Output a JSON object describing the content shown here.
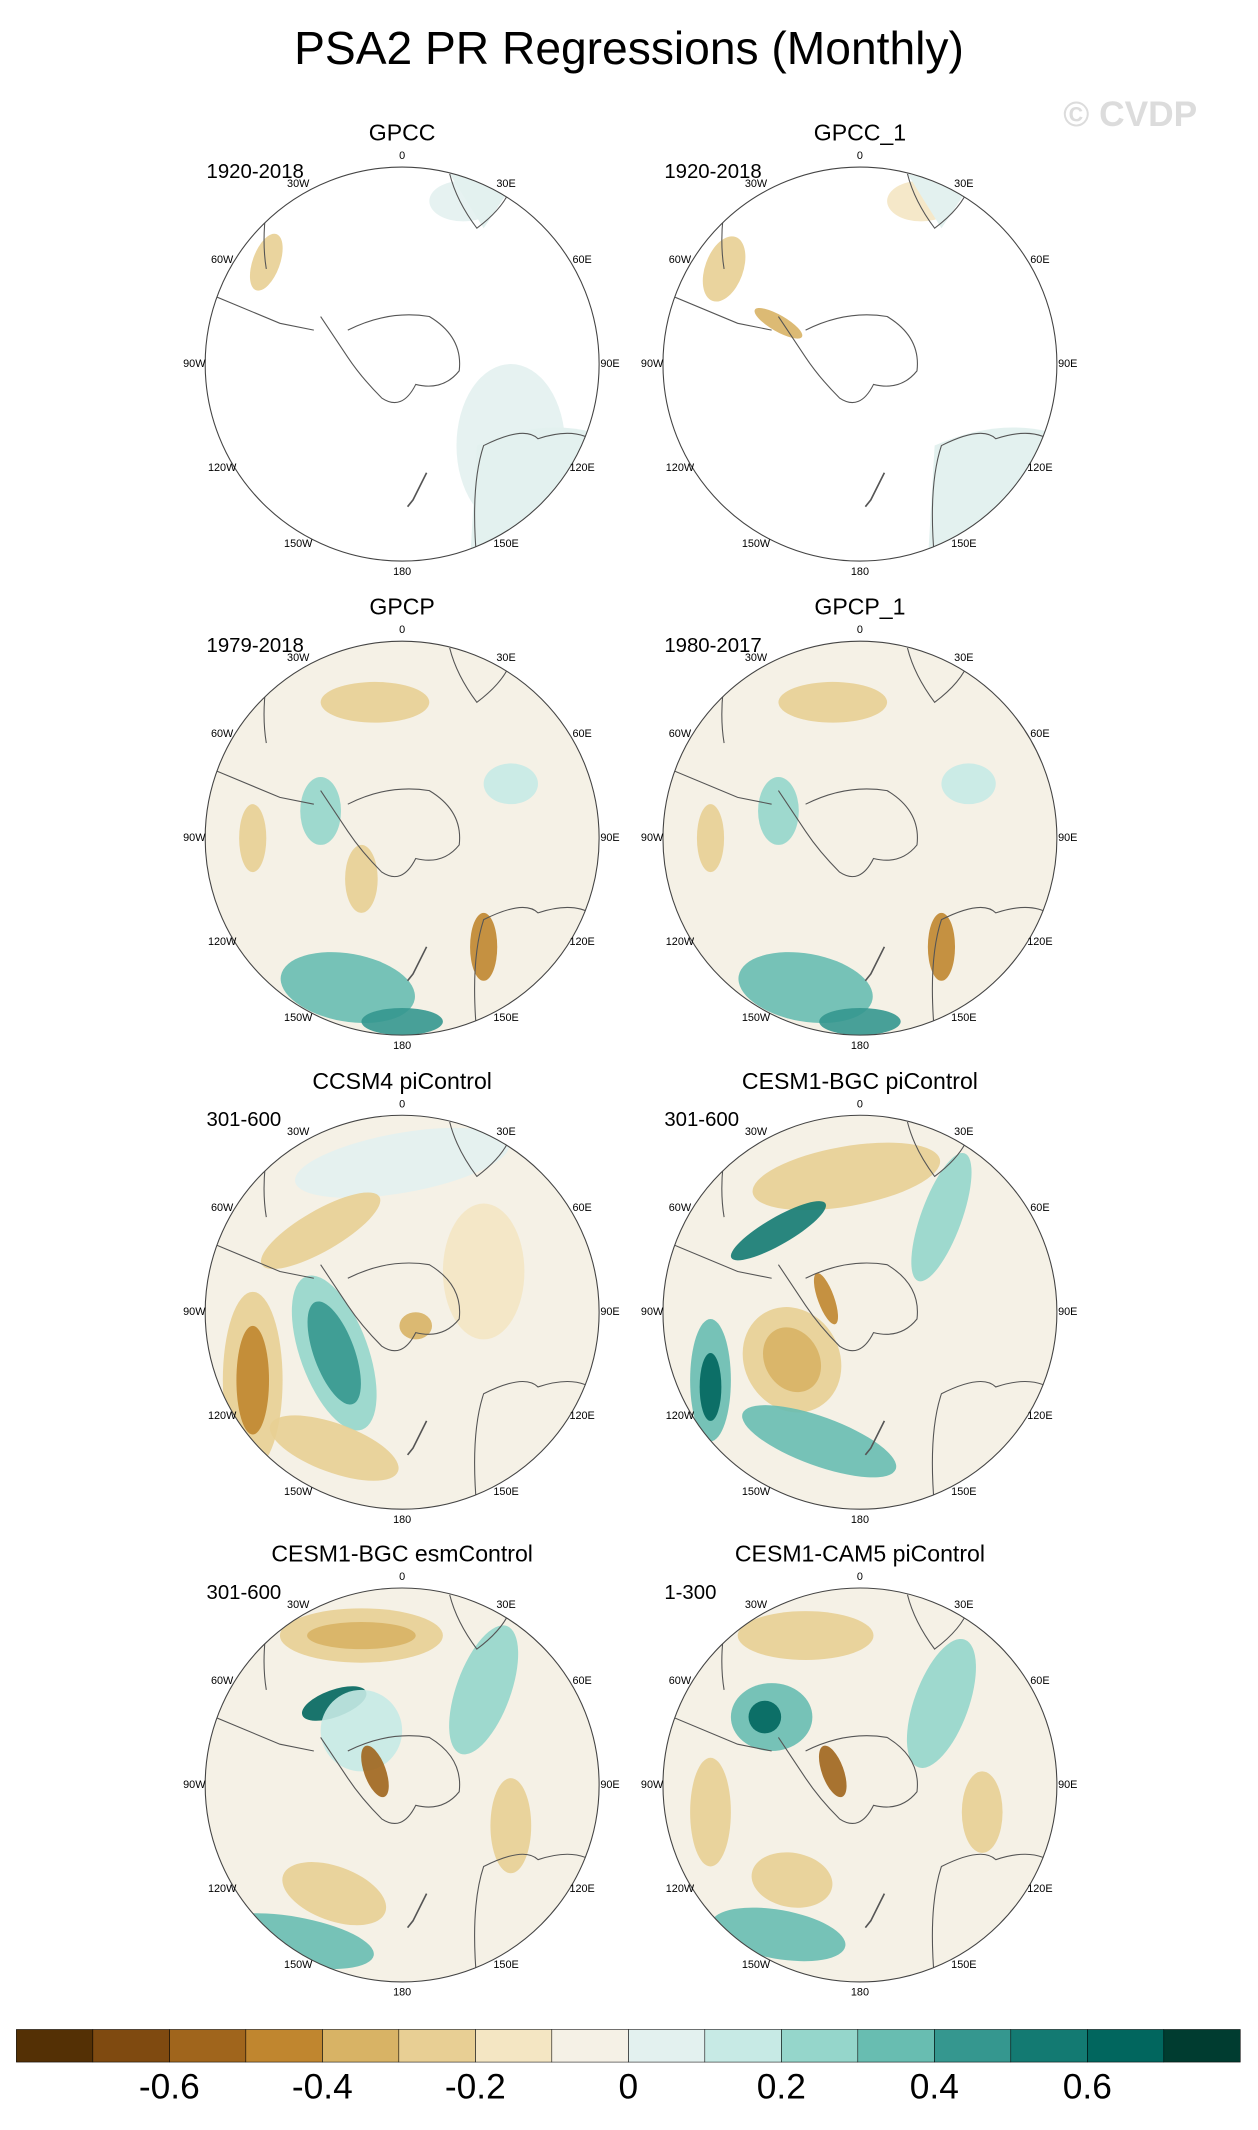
{
  "title": "PSA2 PR Regressions (Monthly)",
  "watermark": "© CVDP",
  "panels": [
    {
      "title": "GPCC",
      "period": "1920-2018"
    },
    {
      "title": "GPCC_1",
      "period": "1920-2018"
    },
    {
      "title": "GPCP",
      "period": "1979-2018"
    },
    {
      "title": "GPCP_1",
      "period": "1980-2017"
    },
    {
      "title": "CCSM4 piControl",
      "period": "301-600"
    },
    {
      "title": "CESM1-BGC piControl",
      "period": "301-600"
    },
    {
      "title": "CESM1-BGC esmControl",
      "period": "301-600"
    },
    {
      "title": "CESM1-CAM5 piControl",
      "period": "1-300"
    }
  ],
  "longitude_labels": [
    "0",
    "30E",
    "60E",
    "90E",
    "120E",
    "150E",
    "180",
    "150W",
    "120W",
    "90W",
    "60W",
    "30W"
  ],
  "colorbar": {
    "xlim": [
      -0.8,
      0.8
    ],
    "ticks": [
      -0.6,
      -0.4,
      -0.2,
      0,
      0.2,
      0.4,
      0.6
    ],
    "colors": [
      "#543005",
      "#7f4a10",
      "#a0651c",
      "#c0862f",
      "#d8b365",
      "#e8cf94",
      "#f4e6c3",
      "#f5f1e6",
      "#e3f1ef",
      "#c7eae5",
      "#95d6cb",
      "#68bdb1",
      "#35978f",
      "#137a72",
      "#01665e",
      "#003c30"
    ]
  }
}
